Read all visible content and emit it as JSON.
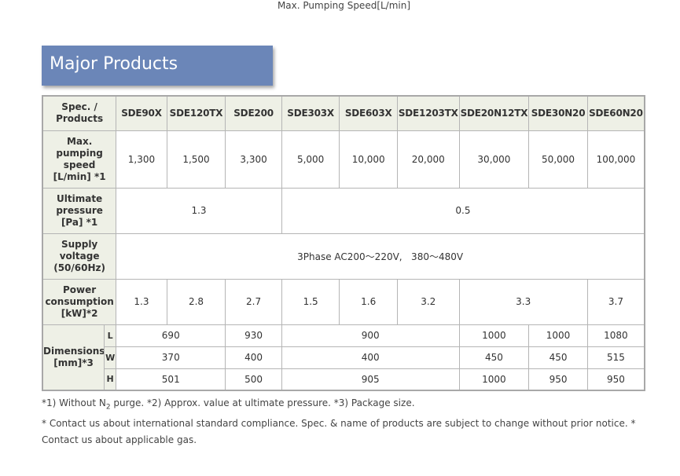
{
  "caption": "Max. Pumping Speed[L/min]",
  "section_title": "Major Products",
  "table": {
    "corner": [
      "Spec. /",
      "Products"
    ],
    "products": [
      "SDE90X",
      "SDE120TX",
      "SDE200",
      "SDE303X",
      "SDE603X",
      "SDE1203TX",
      "SDE20N12TX",
      "SDE30N20",
      "SDE60N20"
    ],
    "pumping_speed": {
      "label": [
        "Max.",
        "pumping",
        "speed",
        "[L/min] *1"
      ],
      "values": [
        "1,300",
        "1,500",
        "3,300",
        "5,000",
        "10,000",
        "20,000",
        "30,000",
        "50,000",
        "100,000"
      ]
    },
    "ultimate_pressure": {
      "label": [
        "Ultimate",
        "pressure",
        "[Pa] *1"
      ],
      "values": [
        "1.3",
        "0.5"
      ]
    },
    "supply_voltage": {
      "label": [
        "Supply",
        "voltage",
        "(50/60Hz)"
      ],
      "value": "3Phase AC200～220V,   380～480V"
    },
    "power": {
      "label": [
        "Power",
        "consumption",
        "[kW]*2"
      ],
      "values": [
        "1.3",
        "2.8",
        "2.7",
        "1.5",
        "1.6",
        "3.2",
        "3.3",
        "3.7"
      ]
    },
    "dimensions": {
      "label": [
        "Dimensions",
        "[mm]*3"
      ],
      "L": {
        "key": "L",
        "values": [
          "690",
          "930",
          "900",
          "1000",
          "1000",
          "1080"
        ]
      },
      "W": {
        "key": "W",
        "values": [
          "370",
          "400",
          "400",
          "450",
          "450",
          "515"
        ]
      },
      "H": {
        "key": "H",
        "values": [
          "501",
          "500",
          "905",
          "1000",
          "950",
          "950"
        ]
      }
    }
  },
  "footnotes": {
    "line1_a": "*1) Without N",
    "line1_sub": "2",
    "line1_b": " purge. *2) Approx. value at ultimate pressure. *3) Package size.",
    "line2": "* Contact us about international standard compliance. Spec. & name of products are subject to change without prior notice. * Contact us about applicable gas."
  }
}
